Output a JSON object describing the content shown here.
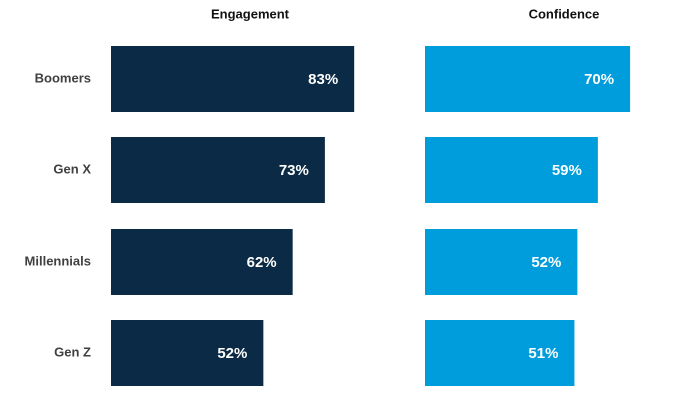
{
  "chart_data": {
    "type": "bar",
    "orientation": "horizontal",
    "categories": [
      "Boomers",
      "Gen X",
      "Millennials",
      "Gen Z"
    ],
    "xlim": [
      0,
      100
    ],
    "series": [
      {
        "name": "Engagement",
        "color": "#0b2a45",
        "values": [
          83,
          73,
          62,
          52
        ],
        "value_labels": [
          "83%",
          "73%",
          "62%",
          "52%"
        ]
      },
      {
        "name": "Confidence",
        "color": "#009ddc",
        "values": [
          70,
          59,
          52,
          51
        ],
        "value_labels": [
          "70%",
          "59%",
          "52%",
          "51%"
        ]
      }
    ]
  }
}
